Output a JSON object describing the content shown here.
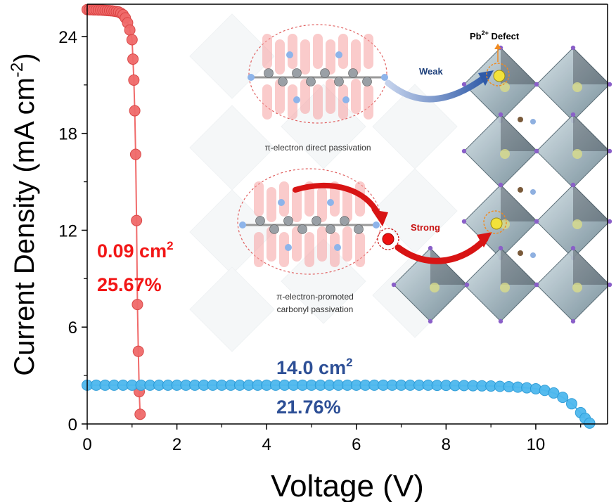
{
  "chart_data": {
    "type": "line",
    "title": "",
    "xlabel": "Voltage (V)",
    "ylabel_main": "Current Density (mA cm",
    "ylabel_sup": "-2",
    "ylabel_close": ")",
    "xlim": [
      0,
      11.6
    ],
    "ylim": [
      0,
      26
    ],
    "xticks": [
      0,
      2,
      4,
      6,
      8,
      10
    ],
    "yticks": [
      0,
      6,
      12,
      18,
      24
    ],
    "grid": false,
    "legend": "none",
    "series": [
      {
        "color": "#f06a6a",
        "x": [
          0.0,
          0.05,
          0.1,
          0.15,
          0.2,
          0.25,
          0.3,
          0.35,
          0.4,
          0.45,
          0.5,
          0.55,
          0.6,
          0.65,
          0.7,
          0.75,
          0.8,
          0.85,
          0.9,
          0.95,
          1.0,
          1.02,
          1.04,
          1.06,
          1.08,
          1.1,
          1.12,
          1.14,
          1.16,
          1.18
        ],
        "y": [
          25.67,
          25.66,
          25.66,
          25.65,
          25.65,
          25.64,
          25.64,
          25.63,
          25.62,
          25.61,
          25.6,
          25.59,
          25.57,
          25.55,
          25.52,
          25.45,
          25.35,
          25.15,
          24.85,
          24.4,
          23.8,
          22.6,
          21.3,
          19.4,
          16.7,
          12.6,
          7.4,
          4.5,
          2.0,
          0.6
        ],
        "label_area": "0.09 cm",
        "label_area_sup": "2",
        "label_eff": "25.67%"
      },
      {
        "color": "#4db8ee",
        "x": [
          0.0,
          0.2,
          0.4,
          0.6,
          0.8,
          1.0,
          1.2,
          1.4,
          1.6,
          1.8,
          2.0,
          2.2,
          2.4,
          2.6,
          2.8,
          3.0,
          3.2,
          3.4,
          3.6,
          3.8,
          4.0,
          4.2,
          4.4,
          4.6,
          4.8,
          5.0,
          5.2,
          5.4,
          5.6,
          5.8,
          6.0,
          6.2,
          6.4,
          6.6,
          6.8,
          7.0,
          7.2,
          7.4,
          7.6,
          7.8,
          8.0,
          8.2,
          8.4,
          8.6,
          8.8,
          9.0,
          9.2,
          9.4,
          9.6,
          9.8,
          10.0,
          10.2,
          10.4,
          10.6,
          10.8,
          11.0,
          11.1,
          11.2
        ],
        "y": [
          2.4,
          2.4,
          2.4,
          2.4,
          2.4,
          2.4,
          2.4,
          2.4,
          2.4,
          2.4,
          2.4,
          2.4,
          2.4,
          2.4,
          2.4,
          2.4,
          2.4,
          2.4,
          2.4,
          2.4,
          2.4,
          2.4,
          2.4,
          2.4,
          2.4,
          2.4,
          2.4,
          2.4,
          2.4,
          2.4,
          2.4,
          2.4,
          2.4,
          2.4,
          2.4,
          2.4,
          2.4,
          2.4,
          2.4,
          2.39,
          2.39,
          2.38,
          2.38,
          2.37,
          2.36,
          2.35,
          2.33,
          2.31,
          2.28,
          2.24,
          2.18,
          2.08,
          1.92,
          1.65,
          1.25,
          0.7,
          0.35,
          0.05
        ],
        "label_area": "14.0 cm",
        "label_area_sup": "2",
        "label_eff": "21.76%"
      }
    ],
    "inset": {
      "text_direct": "π-electron direct passivation",
      "text_promoted_line1": "π-electron-promoted",
      "text_promoted_line2": "carbonyl passivation",
      "text_weak": "Weak",
      "text_strong": "Strong",
      "text_defect_pb": "Pb",
      "text_defect_sup": "2+",
      "text_defect_word": " Defect"
    }
  }
}
